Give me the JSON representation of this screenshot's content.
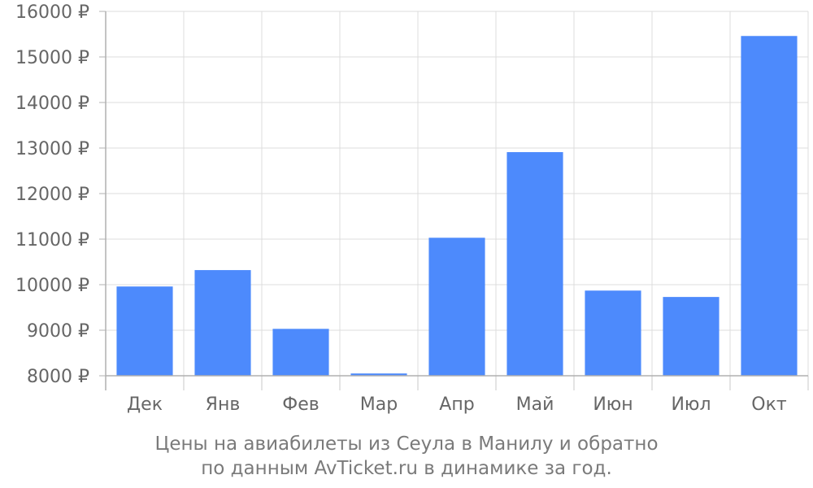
{
  "chart_data": {
    "type": "bar",
    "categories": [
      "Дек",
      "Янв",
      "Фев",
      "Мар",
      "Апр",
      "Май",
      "Июн",
      "Июл",
      "Окт"
    ],
    "series": [
      {
        "values": [
          9960,
          10320,
          9030,
          8050,
          11030,
          12910,
          9870,
          9730,
          15460
        ]
      }
    ],
    "ylim": [
      8000,
      16000
    ],
    "yticks": [
      8000,
      9000,
      10000,
      11000,
      12000,
      13000,
      14000,
      15000,
      16000
    ],
    "ytick_labels": [
      "8000 ₽",
      "9000 ₽",
      "10000 ₽",
      "11000 ₽",
      "12000 ₽",
      "13000 ₽",
      "14000 ₽",
      "15000 ₽",
      "16000 ₽"
    ],
    "grid": true,
    "bar_color": "#4d8afc",
    "title": "",
    "xlabel": "",
    "ylabel": ""
  },
  "caption": {
    "line1": "Цены на авиабилеты из Сеула в Манилу и обратно",
    "line2": "по данным AvTicket.ru в динамике за год."
  }
}
